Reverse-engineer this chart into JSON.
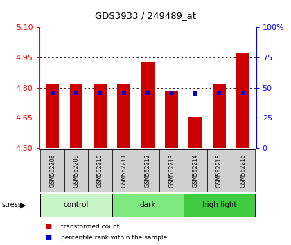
{
  "title": "GDS3933 / 249489_at",
  "samples": [
    "GSM562208",
    "GSM562209",
    "GSM562210",
    "GSM562211",
    "GSM562212",
    "GSM562213",
    "GSM562214",
    "GSM562215",
    "GSM562216"
  ],
  "bar_tops": [
    4.82,
    4.815,
    4.815,
    4.815,
    4.93,
    4.78,
    4.655,
    4.82,
    4.97
  ],
  "bar_bottom": 4.5,
  "blue_dots": [
    4.775,
    4.775,
    4.775,
    4.775,
    4.775,
    4.775,
    4.77,
    4.775,
    4.775
  ],
  "ylim_left": [
    4.5,
    5.1
  ],
  "ylim_right": [
    0,
    100
  ],
  "yticks_left": [
    4.5,
    4.65,
    4.8,
    4.95,
    5.1
  ],
  "yticks_right": [
    0,
    25,
    50,
    75,
    100
  ],
  "ytick_labels_right": [
    "0",
    "25",
    "50",
    "75",
    "100%"
  ],
  "groups": [
    {
      "label": "control",
      "start": 0,
      "end": 3,
      "color": "#c8f5c8"
    },
    {
      "label": "dark",
      "start": 3,
      "end": 6,
      "color": "#80e880"
    },
    {
      "label": "high light",
      "start": 6,
      "end": 9,
      "color": "#40cc40"
    }
  ],
  "bar_color": "#cc0000",
  "dot_color": "#0000cc",
  "bar_width": 0.55,
  "stress_label": "stress",
  "legend_items": [
    {
      "color": "#cc0000",
      "label": "transformed count"
    },
    {
      "color": "#0000cc",
      "label": "percentile rank within the sample"
    }
  ]
}
